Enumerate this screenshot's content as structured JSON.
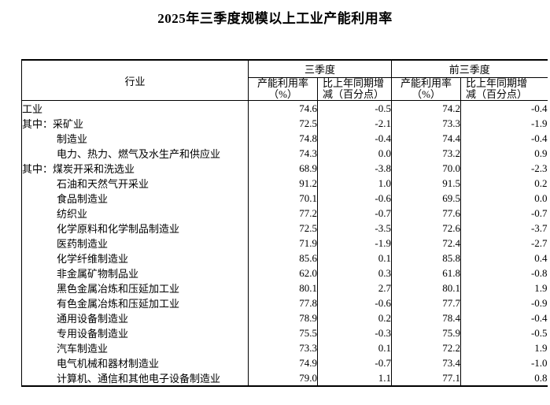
{
  "page": {
    "title": "2025年三季度规模以上工业产能利用率"
  },
  "table": {
    "headers": {
      "industry": "行业",
      "q3_group": "三季度",
      "ytd_group": "前三季度",
      "util_line1": "产能利用率",
      "util_line2": "（%）",
      "chg_line1": "比上年同期增",
      "chg_line2": "减（百分点）"
    },
    "rows": [
      {
        "prefix": "",
        "name": "工业",
        "indent": false,
        "q3_util": "74.6",
        "q3_chg": "-0.5",
        "ytd_util": "74.2",
        "ytd_chg": "-0.4"
      },
      {
        "prefix": "其中：",
        "name": "采矿业",
        "indent": false,
        "q3_util": "72.5",
        "q3_chg": "-2.1",
        "ytd_util": "73.3",
        "ytd_chg": "-1.9"
      },
      {
        "prefix": "",
        "name": "制造业",
        "indent": true,
        "q3_util": "74.8",
        "q3_chg": "-0.4",
        "ytd_util": "74.4",
        "ytd_chg": "-0.4"
      },
      {
        "prefix": "",
        "name": "电力、热力、燃气及水生产和供应业",
        "indent": true,
        "q3_util": "74.3",
        "q3_chg": "0.0",
        "ytd_util": "73.2",
        "ytd_chg": "0.9"
      },
      {
        "prefix": "其中：",
        "name": "煤炭开采和洗选业",
        "indent": false,
        "q3_util": "68.9",
        "q3_chg": "-3.8",
        "ytd_util": "70.0",
        "ytd_chg": "-2.3"
      },
      {
        "prefix": "",
        "name": "石油和天然气开采业",
        "indent": true,
        "q3_util": "91.2",
        "q3_chg": "1.0",
        "ytd_util": "91.5",
        "ytd_chg": "0.2"
      },
      {
        "prefix": "",
        "name": "食品制造业",
        "indent": true,
        "q3_util": "70.1",
        "q3_chg": "-0.6",
        "ytd_util": "69.5",
        "ytd_chg": "0.0"
      },
      {
        "prefix": "",
        "name": "纺织业",
        "indent": true,
        "q3_util": "77.2",
        "q3_chg": "-0.7",
        "ytd_util": "77.6",
        "ytd_chg": "-0.7"
      },
      {
        "prefix": "",
        "name": "化学原料和化学制品制造业",
        "indent": true,
        "q3_util": "72.5",
        "q3_chg": "-3.5",
        "ytd_util": "72.6",
        "ytd_chg": "-3.7"
      },
      {
        "prefix": "",
        "name": "医药制造业",
        "indent": true,
        "q3_util": "71.9",
        "q3_chg": "-1.9",
        "ytd_util": "72.4",
        "ytd_chg": "-2.7"
      },
      {
        "prefix": "",
        "name": "化学纤维制造业",
        "indent": true,
        "q3_util": "85.6",
        "q3_chg": "0.1",
        "ytd_util": "85.8",
        "ytd_chg": "0.4"
      },
      {
        "prefix": "",
        "name": "非金属矿物制品业",
        "indent": true,
        "q3_util": "62.0",
        "q3_chg": "0.3",
        "ytd_util": "61.8",
        "ytd_chg": "-0.8"
      },
      {
        "prefix": "",
        "name": "黑色金属冶炼和压延加工业",
        "indent": true,
        "q3_util": "80.1",
        "q3_chg": "2.7",
        "ytd_util": "80.1",
        "ytd_chg": "1.9"
      },
      {
        "prefix": "",
        "name": "有色金属冶炼和压延加工业",
        "indent": true,
        "q3_util": "77.8",
        "q3_chg": "-0.6",
        "ytd_util": "77.7",
        "ytd_chg": "-0.9"
      },
      {
        "prefix": "",
        "name": "通用设备制造业",
        "indent": true,
        "q3_util": "78.9",
        "q3_chg": "0.2",
        "ytd_util": "78.4",
        "ytd_chg": "-0.4"
      },
      {
        "prefix": "",
        "name": "专用设备制造业",
        "indent": true,
        "q3_util": "75.5",
        "q3_chg": "-0.3",
        "ytd_util": "75.9",
        "ytd_chg": "-0.5"
      },
      {
        "prefix": "",
        "name": "汽车制造业",
        "indent": true,
        "q3_util": "73.3",
        "q3_chg": "0.1",
        "ytd_util": "72.2",
        "ytd_chg": "1.9"
      },
      {
        "prefix": "",
        "name": "电气机械和器材制造业",
        "indent": true,
        "q3_util": "74.9",
        "q3_chg": "-0.7",
        "ytd_util": "73.4",
        "ytd_chg": "-1.0"
      },
      {
        "prefix": "",
        "name": "计算机、通信和其他电子设备制造业",
        "indent": true,
        "q3_util": "79.0",
        "q3_chg": "1.1",
        "ytd_util": "77.1",
        "ytd_chg": "0.8"
      }
    ]
  }
}
